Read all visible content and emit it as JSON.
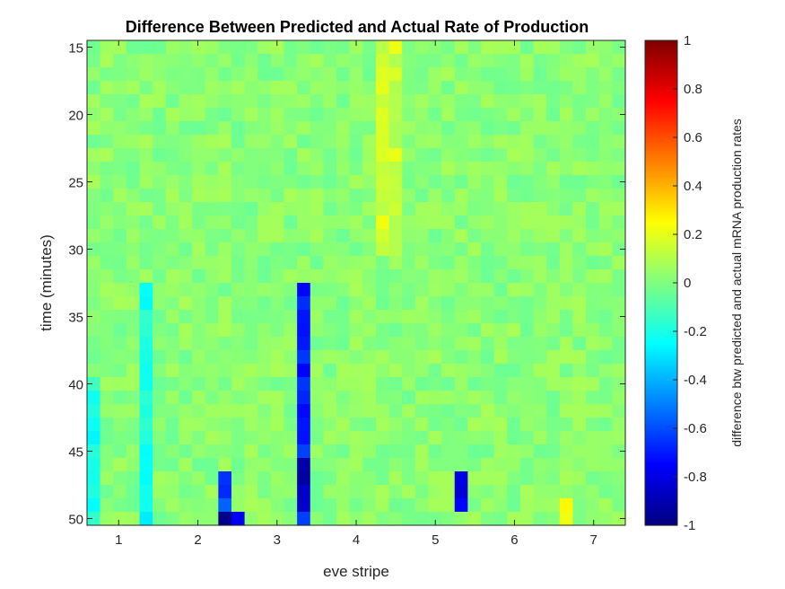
{
  "chart_data": {
    "type": "heatmap",
    "title": "Difference Between Predicted and Actual Rate of Production",
    "xlabel": "eve stripe",
    "ylabel": "time (minutes)",
    "colorbar_label": "difference btw predicted and actual mRNA production rates",
    "colormap": "jet",
    "clim": [
      -1,
      1
    ],
    "xlim": [
      0.6,
      7.4
    ],
    "ylim": [
      14.5,
      50.5
    ],
    "y_direction": "reversed",
    "x_ticks": [
      1,
      2,
      3,
      4,
      5,
      6,
      7
    ],
    "y_ticks": [
      15,
      20,
      25,
      30,
      35,
      40,
      45,
      50
    ],
    "colorbar_ticks": [
      -1,
      -0.8,
      -0.6,
      -0.4,
      -0.2,
      0,
      0.2,
      0.4,
      0.6,
      0.8,
      1
    ],
    "x_tick_labels": [
      "1",
      "2",
      "3",
      "4",
      "5",
      "6",
      "7"
    ],
    "y_tick_labels": [
      "15",
      "20",
      "25",
      "30",
      "35",
      "40",
      "45",
      "50"
    ],
    "colorbar_tick_labels": [
      "-1",
      "-0.8",
      "-0.6",
      "-0.4",
      "-0.2",
      "0",
      "0.2",
      "0.4",
      "0.6",
      "0.8",
      "1"
    ],
    "x_bins": [
      0.6,
      7.4,
      41
    ],
    "y_bins": [
      14.5,
      50.5,
      36
    ],
    "features": [
      {
        "stripe_x": 3.35,
        "time_from": 33,
        "time_to": 50,
        "value": -0.7,
        "description": "strong negative column"
      },
      {
        "stripe_x": 3.35,
        "time_from": 46,
        "time_to": 49,
        "value": -0.9
      },
      {
        "stripe_x": 2.35,
        "time_from": 47,
        "time_to": 50,
        "value": -0.6
      },
      {
        "stripe_x": 2.35,
        "time_from": 50,
        "time_to": 50,
        "value": -1.0
      },
      {
        "stripe_x": 2.55,
        "time_from": 50,
        "time_to": 50,
        "value": -0.7
      },
      {
        "stripe_x": 5.35,
        "time_from": 47,
        "time_to": 49,
        "value": -0.75
      },
      {
        "stripe_x": 1.35,
        "time_from": 33,
        "time_to": 50,
        "value": -0.22
      },
      {
        "stripe_x": 0.7,
        "time_from": 40,
        "time_to": 50,
        "value": -0.2
      },
      {
        "stripe_x": 4.4,
        "time_from": 15,
        "time_to": 30,
        "value": 0.15
      },
      {
        "stripe_x": 6.7,
        "time_from": 49,
        "time_to": 50,
        "value": 0.25
      }
    ]
  }
}
